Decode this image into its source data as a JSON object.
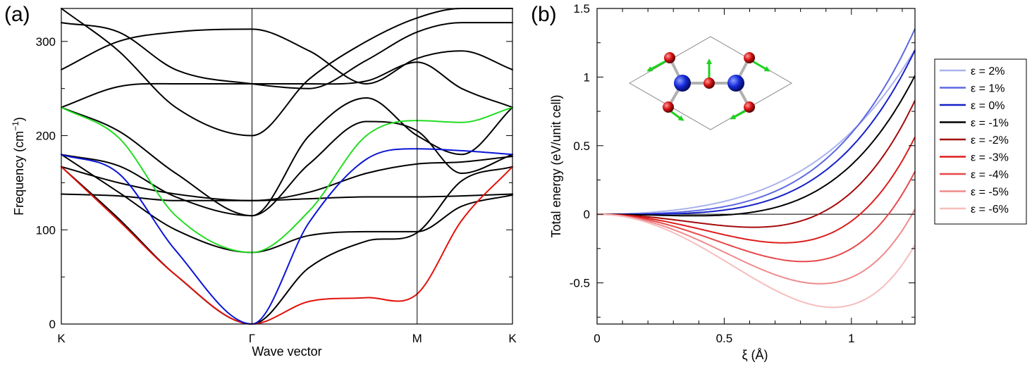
{
  "chart_data": [
    {
      "panel_label": "(a)",
      "type": "line",
      "xlabel": "Wave vector",
      "ylabel_main": "Frequency (cm",
      "ylabel_sup": "−1",
      "ylabel_close": ")",
      "ylim": [
        0,
        335
      ],
      "yticks": [
        0,
        100,
        200,
        300
      ],
      "high_symmetry_points": [
        {
          "label": "K",
          "position": 0.0
        },
        {
          "label": "Γ",
          "position": 1.0
        },
        {
          "label": "M",
          "position": 1.866
        },
        {
          "label": "K",
          "position": 2.366
        }
      ],
      "x": [
        0,
        0.3,
        0.6,
        1.0,
        1.3,
        1.6,
        1.866,
        2.1,
        2.366
      ],
      "grid": false,
      "series": [
        {
          "color": "#e3120b",
          "values": [
            167,
            110,
            52,
            0,
            24,
            28,
            32,
            110,
            167
          ]
        },
        {
          "color": "#0a14d6",
          "values": [
            180,
            160,
            78,
            0,
            108,
            175,
            186,
            184,
            180
          ]
        },
        {
          "color": "#21dd21",
          "values": [
            230,
            198,
            115,
            76,
            120,
            200,
            216,
            214,
            230
          ]
        },
        {
          "color": "#000000",
          "values": [
            167,
            112,
            52,
            0,
            60,
            88,
            97,
            152,
            167
          ]
        },
        {
          "color": "#000000",
          "values": [
            180,
            140,
            100,
            76,
            94,
            98,
            98,
            125,
            137
          ]
        },
        {
          "color": "#000000",
          "values": [
            138,
            136,
            131,
            131,
            133,
            135,
            135,
            136,
            138
          ]
        },
        {
          "color": "#000000",
          "values": [
            167,
            150,
            138,
            131,
            140,
            160,
            170,
            172,
            178
          ]
        },
        {
          "color": "#000000",
          "values": [
            180,
            168,
            135,
            115,
            170,
            215,
            205,
            160,
            180
          ]
        },
        {
          "color": "#000000",
          "values": [
            230,
            205,
            160,
            115,
            200,
            240,
            200,
            180,
            230
          ]
        },
        {
          "color": "#000000",
          "values": [
            230,
            252,
            255,
            255,
            255,
            258,
            278,
            250,
            230
          ]
        },
        {
          "color": "#000000",
          "values": [
            270,
            300,
            310,
            313,
            290,
            255,
            282,
            290,
            270
          ]
        },
        {
          "color": "#000000",
          "values": [
            320,
            310,
            270,
            255,
            250,
            280,
            310,
            320,
            320
          ]
        },
        {
          "color": "#000000",
          "values": [
            335,
            290,
            230,
            200,
            260,
            300,
            325,
            335,
            335
          ]
        }
      ]
    },
    {
      "panel_label": "(b)",
      "type": "line",
      "xlabel": "ξ (Å)",
      "ylabel": "Total energy (eV/unit cell)",
      "xlim": [
        0,
        1.25
      ],
      "ylim": [
        -0.8,
        1.5
      ],
      "xticks": [
        0,
        0.5,
        1
      ],
      "xtick_labels": [
        "0",
        "0.5",
        "1"
      ],
      "yticks": [
        -0.5,
        0,
        0.5,
        1,
        1.5
      ],
      "ytick_labels": [
        "-0.5",
        "0",
        "0.5",
        "1",
        "1.5"
      ],
      "zero_line": true,
      "grid": false,
      "legend_position": "right",
      "series": [
        {
          "name": "ε =  2%",
          "color": "#aab2ee",
          "a": 0.3,
          "b": 0.3
        },
        {
          "name": "ε =  1%",
          "color": "#5d68e2",
          "a": 0.1,
          "b": 0.49
        },
        {
          "name": "ε =  0%",
          "color": "#1520c8",
          "a": 0.0,
          "b": 0.49
        },
        {
          "name": "ε = -1%",
          "color": "#000000",
          "a": -0.15,
          "b": 0.51
        },
        {
          "name": "ε = -2%",
          "color": "#a40b0b",
          "a": -0.5,
          "b": 0.66
        },
        {
          "name": "ε = -3%",
          "color": "#de1d1d",
          "a": -0.78,
          "b": 0.73
        },
        {
          "name": "ε = -4%",
          "color": "#e8484a",
          "a": -1.05,
          "b": 0.8
        },
        {
          "name": "ε = -5%",
          "color": "#ef8a8c",
          "a": -1.32,
          "b": 0.86
        },
        {
          "name": "ε = -6%",
          "color": "#f6bdbd",
          "a": -1.58,
          "b": 0.92
        }
      ]
    }
  ],
  "inset": {
    "arrow_color": "#1ed21e",
    "atom_large_color": "#1428d8",
    "atom_small_color": "#d41010"
  }
}
